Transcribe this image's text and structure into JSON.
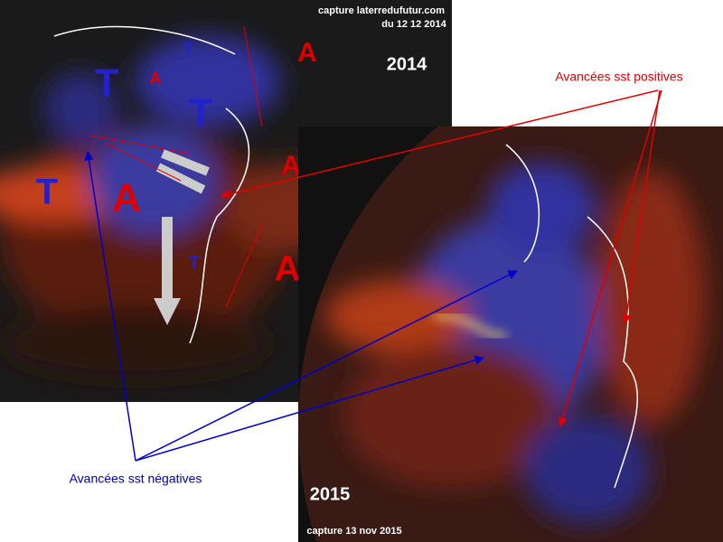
{
  "panel_2014": {
    "caption": "capture laterredufutur.com",
    "date": "du 12 12 2014",
    "year": "2014",
    "map_labels": [
      "T",
      "A",
      "T",
      "A",
      "T",
      "A",
      "T",
      "A",
      "T",
      "A"
    ]
  },
  "panel_2015": {
    "year": "2015",
    "caption": "capture 13 nov 2015"
  },
  "annotations": {
    "positive": "Avancées sst positives",
    "negative": "Avancées sst négatives"
  }
}
